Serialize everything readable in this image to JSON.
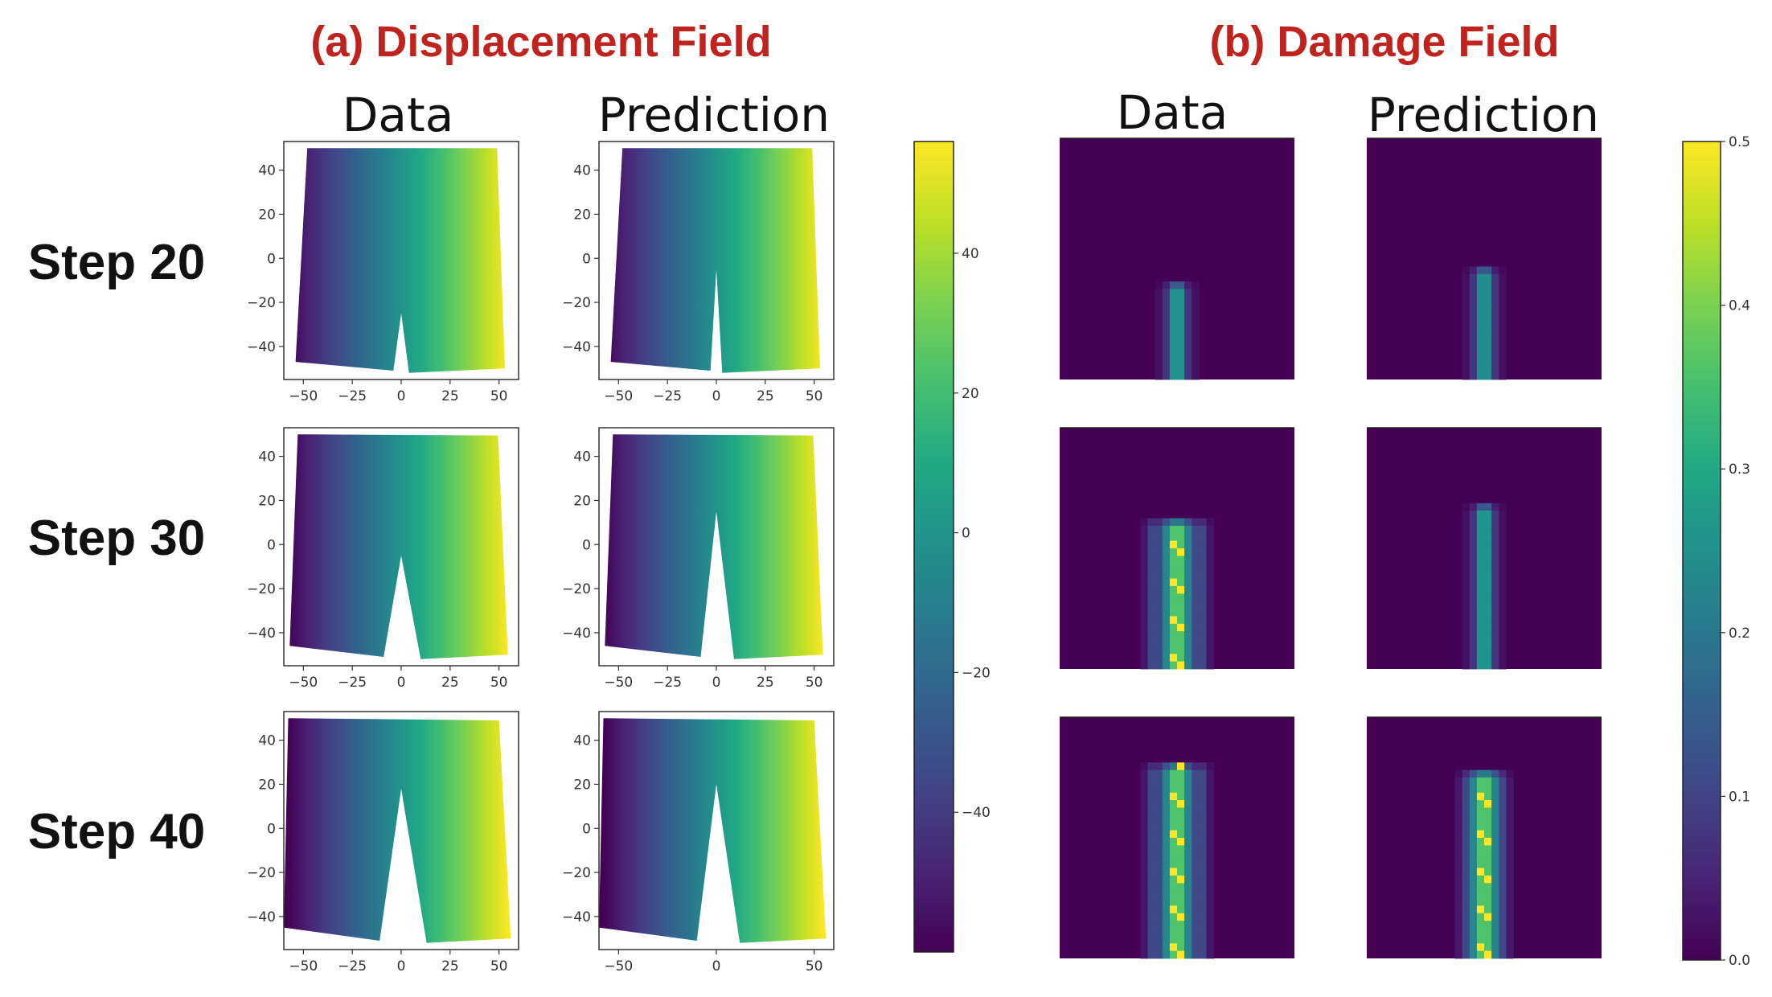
{
  "titles": {
    "displacement": "(a) Displacement Field",
    "damage": "(b) Damage Field"
  },
  "column_titles": {
    "disp_data": "Data",
    "disp_pred": "Prediction",
    "dmg_data": "Data",
    "dmg_pred": "Prediction"
  },
  "row_labels": [
    "Step 20",
    "Step 30",
    "Step 40"
  ],
  "colors": {
    "title_red": "#c0221e",
    "viridis_low": "#440154",
    "viridis_high": "#fde725"
  },
  "chart_data": [
    {
      "type": "scatter",
      "title": "Displacement Field",
      "panels": [
        {
          "step": "Step 20",
          "kind": "Data",
          "crack_tip_y": -25,
          "crack_width": 8,
          "x_tick_labels": [
            "−50",
            "−25",
            "0",
            "25",
            "50"
          ]
        },
        {
          "step": "Step 20",
          "kind": "Prediction",
          "crack_tip_y": -5,
          "crack_width": 6,
          "x_tick_labels": [
            "−50",
            "−25",
            "0",
            "25",
            "50"
          ]
        },
        {
          "step": "Step 30",
          "kind": "Data",
          "crack_tip_y": -5,
          "crack_width": 16,
          "x_tick_labels": [
            "−50",
            "−25",
            "0",
            "25",
            "50"
          ]
        },
        {
          "step": "Step 30",
          "kind": "Prediction",
          "crack_tip_y": 15,
          "crack_width": 14,
          "x_tick_labels": [
            "−50",
            "−25",
            "0",
            "25",
            "50"
          ]
        },
        {
          "step": "Step 40",
          "kind": "Data",
          "crack_tip_y": 18,
          "crack_width": 18,
          "x_tick_labels": [
            "−50",
            "−25",
            "0",
            "25",
            "50"
          ]
        },
        {
          "step": "Step 40",
          "kind": "Prediction",
          "crack_tip_y": 20,
          "crack_width": 16,
          "x_tick_labels": [
            "−50",
            "0",
            "50"
          ]
        }
      ],
      "y_tick_labels": [
        "40",
        "20",
        "0",
        "−20",
        "−40"
      ],
      "xlim": [
        -60,
        60
      ],
      "ylim": [
        -55,
        53
      ],
      "colorbar": {
        "min": -60,
        "max": 56,
        "tick_labels": [
          "40",
          "20",
          "0",
          "−20",
          "−40"
        ],
        "tick_values": [
          40,
          20,
          0,
          -20,
          -40
        ]
      }
    },
    {
      "type": "heatmap",
      "title": "Damage Field",
      "panels": [
        {
          "step": "Step 20",
          "kind": "Data",
          "top": 0.6,
          "width": 0.15,
          "peak": 0.35
        },
        {
          "step": "Step 20",
          "kind": "Prediction",
          "top": 0.52,
          "width": 0.15,
          "peak": 0.34
        },
        {
          "step": "Step 30",
          "kind": "Data",
          "top": 0.39,
          "width": 0.25,
          "peak": 0.5
        },
        {
          "step": "Step 30",
          "kind": "Prediction",
          "top": 0.3,
          "width": 0.15,
          "peak": 0.36
        },
        {
          "step": "Step 40",
          "kind": "Data",
          "top": 0.2,
          "width": 0.25,
          "peak": 0.5
        },
        {
          "step": "Step 40",
          "kind": "Prediction",
          "top": 0.22,
          "width": 0.17,
          "peak": 0.5
        }
      ],
      "colorbar": {
        "min": 0.0,
        "max": 0.5,
        "tick_labels": [
          "0.5",
          "0.4",
          "0.3",
          "0.2",
          "0.1",
          "0.0"
        ],
        "tick_values": [
          0.5,
          0.4,
          0.3,
          0.2,
          0.1,
          0.0
        ]
      }
    }
  ]
}
